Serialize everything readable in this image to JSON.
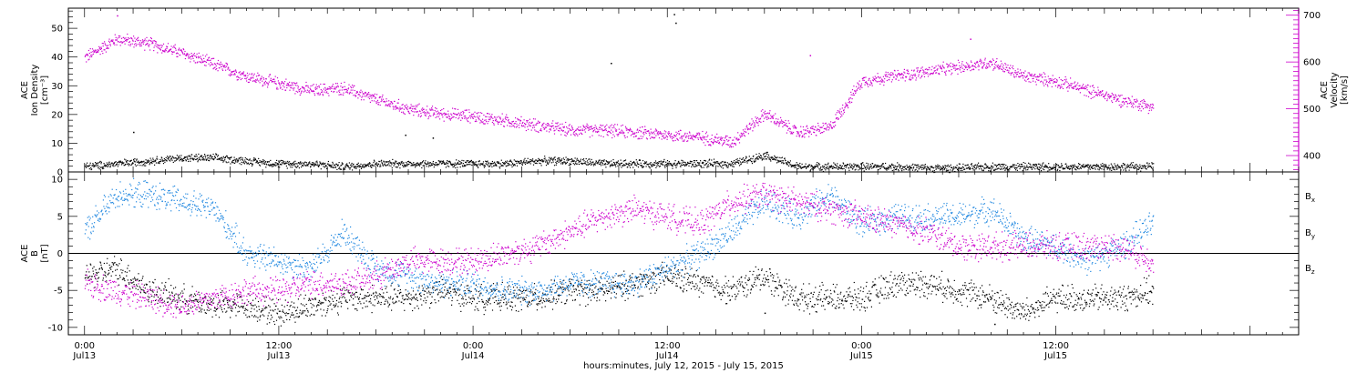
{
  "chart_data": [
    {
      "type": "scatter",
      "panel": "top",
      "ylabel_left": [
        "ACE",
        "Ion Density",
        "[cm⁻³]"
      ],
      "ylabel_right": [
        "ACE",
        "Velocity",
        "[km/s]"
      ],
      "ylim_left": [
        0,
        57
      ],
      "ylim_right": [
        365,
        715
      ],
      "yticks_left": [
        0,
        10,
        20,
        30,
        40,
        50
      ],
      "yticks_right": [
        400,
        500,
        600,
        700
      ],
      "colors": {
        "density": "#000000",
        "velocity": "#cc00cc"
      },
      "series": [
        {
          "name": "Ion Density",
          "axis": "left",
          "x_hours": [
            0,
            2,
            4,
            6,
            8,
            10,
            12,
            14,
            16,
            18,
            20,
            22,
            24,
            26,
            28,
            30,
            32,
            34,
            36,
            38,
            40,
            42,
            44,
            46,
            48,
            50,
            52,
            54,
            56,
            58,
            60,
            62,
            64,
            66
          ],
          "values": [
            2,
            3,
            4,
            5,
            5,
            4,
            3,
            3,
            2,
            3,
            3,
            3,
            3,
            3,
            4,
            4,
            3,
            3,
            3,
            3,
            3,
            6,
            2,
            2,
            2,
            2,
            1.5,
            1.5,
            2,
            2,
            2,
            2,
            2,
            2
          ]
        },
        {
          "name": "Velocity",
          "axis": "right",
          "x_hours": [
            0,
            2,
            4,
            6,
            8,
            10,
            12,
            14,
            16,
            18,
            20,
            22,
            24,
            26,
            28,
            30,
            32,
            34,
            36,
            38,
            40,
            42,
            44,
            46,
            48,
            50,
            52,
            54,
            56,
            58,
            60,
            62,
            64,
            66
          ],
          "values": [
            610,
            650,
            640,
            620,
            595,
            570,
            555,
            540,
            545,
            520,
            500,
            490,
            485,
            475,
            465,
            455,
            455,
            450,
            445,
            440,
            430,
            490,
            450,
            460,
            560,
            570,
            580,
            590,
            600,
            570,
            560,
            540,
            520,
            505
          ]
        }
      ],
      "outliers": [
        {
          "series": "Ion Density",
          "x_hours": 36.4,
          "value": 55
        },
        {
          "series": "Ion Density",
          "x_hours": 36.5,
          "value": 52
        },
        {
          "series": "Ion Density",
          "x_hours": 32.5,
          "value": 38
        },
        {
          "series": "Ion Density",
          "x_hours": 3.0,
          "value": 14
        },
        {
          "series": "Ion Density",
          "x_hours": 19.8,
          "value": 13
        },
        {
          "series": "Ion Density",
          "x_hours": 21.5,
          "value": 12
        },
        {
          "series": "Ion Density",
          "x_hours": 42.1,
          "value": 7
        },
        {
          "series": "Velocity",
          "x_hours": 54.7,
          "value": 650
        },
        {
          "series": "Velocity",
          "x_hours": 44.8,
          "value": 615
        },
        {
          "series": "Velocity",
          "x_hours": 2.0,
          "value": 700
        }
      ]
    },
    {
      "type": "scatter",
      "panel": "bottom",
      "ylabel_left": [
        "ACE",
        "B",
        "[nT]"
      ],
      "ylim": [
        -11,
        11
      ],
      "yticks": [
        -10,
        -5,
        0,
        5,
        10
      ],
      "zero_line": true,
      "colors": {
        "Bx": "#000000",
        "By": "#1f87e0",
        "Bz": "#cc00cc"
      },
      "series": [
        {
          "name": "Bx",
          "label_main": "B",
          "label_sub": "x",
          "x_hours": [
            0,
            2,
            4,
            6,
            8,
            10,
            12,
            14,
            16,
            18,
            20,
            22,
            24,
            26,
            28,
            30,
            32,
            34,
            36,
            38,
            40,
            42,
            44,
            46,
            48,
            50,
            52,
            54,
            56,
            58,
            60,
            62,
            64,
            66
          ],
          "values": [
            -3,
            -2,
            -5,
            -6,
            -7,
            -7,
            -8,
            -7,
            -6,
            -6,
            -6,
            -5,
            -6,
            -6,
            -6,
            -5,
            -5,
            -4,
            -3,
            -4,
            -5,
            -3,
            -6,
            -6,
            -6,
            -4,
            -4,
            -5,
            -6,
            -8,
            -6,
            -6,
            -6,
            -5
          ]
        },
        {
          "name": "By",
          "label_main": "B",
          "label_sub": "y",
          "x_hours": [
            0,
            2,
            4,
            6,
            8,
            10,
            12,
            14,
            16,
            18,
            20,
            22,
            24,
            26,
            28,
            30,
            32,
            34,
            36,
            38,
            40,
            42,
            44,
            46,
            48,
            50,
            52,
            54,
            56,
            58,
            60,
            62,
            64,
            66
          ],
          "values": [
            3,
            8,
            8,
            7,
            6,
            0,
            -1,
            -2,
            3,
            -2,
            -3,
            -4,
            -4,
            -5,
            -5,
            -4,
            -4,
            -4,
            -2,
            0,
            3,
            7,
            5,
            8,
            4,
            5,
            5,
            5,
            6,
            2,
            1,
            -1,
            1,
            4
          ]
        },
        {
          "name": "Bz",
          "label_main": "B",
          "label_sub": "z",
          "x_hours": [
            0,
            2,
            4,
            6,
            8,
            10,
            12,
            14,
            16,
            18,
            20,
            22,
            24,
            26,
            28,
            30,
            32,
            34,
            36,
            38,
            40,
            42,
            44,
            46,
            48,
            50,
            52,
            54,
            56,
            58,
            60,
            62,
            64,
            66
          ],
          "values": [
            -4,
            -5,
            -6,
            -7,
            -6,
            -5,
            -5,
            -4,
            -4,
            -3,
            -1,
            -1,
            -1,
            0,
            1,
            3,
            5,
            6,
            5,
            4,
            7,
            8,
            7,
            6,
            5,
            4,
            3,
            1,
            1,
            1,
            1,
            1,
            1,
            -1
          ]
        }
      ],
      "outliers": [
        {
          "series": "Bx",
          "x_hours": 56.2,
          "value": -9.5
        },
        {
          "series": "Bx",
          "x_hours": 42.0,
          "value": -8
        }
      ]
    }
  ],
  "x_axis": {
    "xlim_hours": [
      -1,
      75
    ],
    "major_ticks": [
      {
        "hours": 0,
        "time": "0:00",
        "date": "Jul13"
      },
      {
        "hours": 12,
        "time": "12:00",
        "date": "Jul13"
      },
      {
        "hours": 24,
        "time": "0:00",
        "date": "Jul14"
      },
      {
        "hours": 36,
        "time": "12:00",
        "date": "Jul14"
      },
      {
        "hours": 48,
        "time": "0:00",
        "date": "Jul15"
      },
      {
        "hours": 60,
        "time": "12:00",
        "date": "Jul15"
      }
    ],
    "xlabel": "hours:minutes, July 12, 2015 - July 15, 2015"
  }
}
